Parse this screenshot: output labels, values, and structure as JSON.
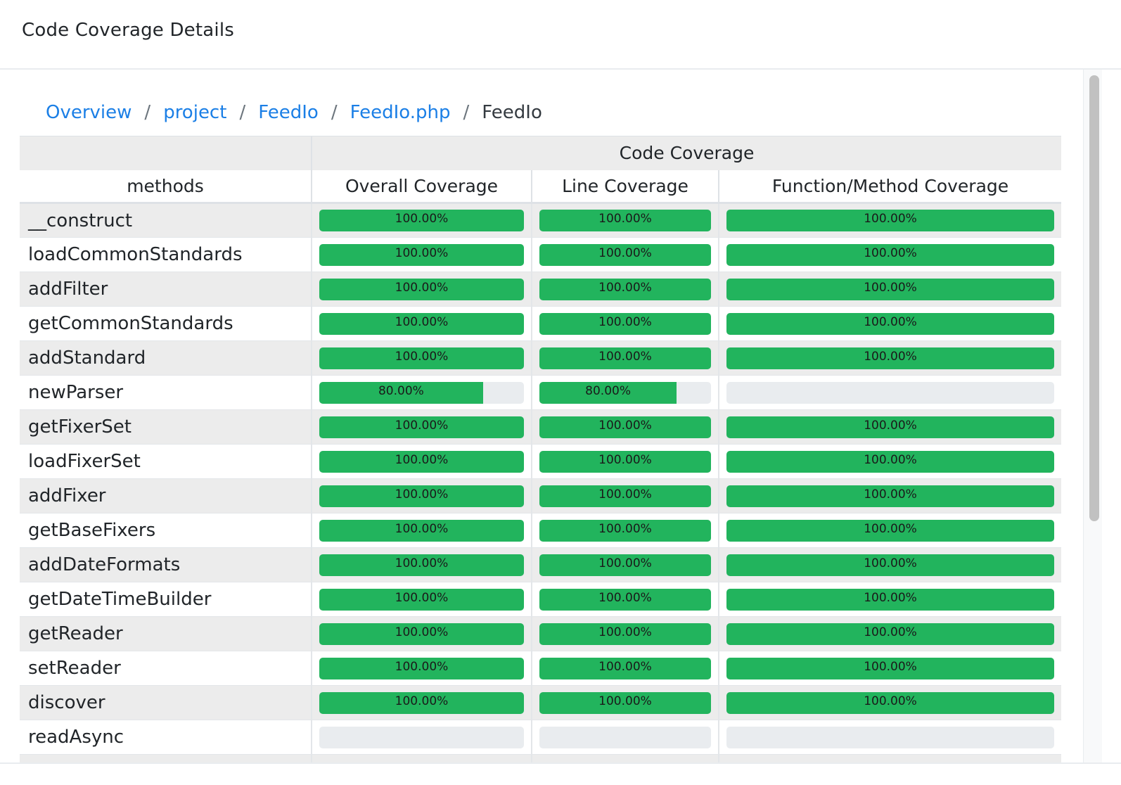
{
  "header": {
    "title": "Code Coverage Details"
  },
  "breadcrumb": {
    "items": [
      "Overview",
      "project",
      "FeedIo",
      "FeedIo.php"
    ],
    "current": "FeedIo",
    "separator": "/"
  },
  "table": {
    "group_header": "Code Coverage",
    "columns": [
      "methods",
      "Overall Coverage",
      "Line Coverage",
      "Function/Method Coverage"
    ],
    "colors": {
      "bar_fill": "#22b45d",
      "bar_track": "#e9ecef",
      "link": "#1b7fe6"
    },
    "rows": [
      {
        "method": "__construct",
        "overall": 100,
        "line": 100,
        "function": 100,
        "overall_label": "100.00%",
        "line_label": "100.00%",
        "function_label": "100.00%"
      },
      {
        "method": "loadCommonStandards",
        "overall": 100,
        "line": 100,
        "function": 100,
        "overall_label": "100.00%",
        "line_label": "100.00%",
        "function_label": "100.00%"
      },
      {
        "method": "addFilter",
        "overall": 100,
        "line": 100,
        "function": 100,
        "overall_label": "100.00%",
        "line_label": "100.00%",
        "function_label": "100.00%"
      },
      {
        "method": "getCommonStandards",
        "overall": 100,
        "line": 100,
        "function": 100,
        "overall_label": "100.00%",
        "line_label": "100.00%",
        "function_label": "100.00%"
      },
      {
        "method": "addStandard",
        "overall": 100,
        "line": 100,
        "function": 100,
        "overall_label": "100.00%",
        "line_label": "100.00%",
        "function_label": "100.00%"
      },
      {
        "method": "newParser",
        "overall": 80,
        "line": 80,
        "function": 0,
        "overall_label": "80.00%",
        "line_label": "80.00%",
        "function_label": ""
      },
      {
        "method": "getFixerSet",
        "overall": 100,
        "line": 100,
        "function": 100,
        "overall_label": "100.00%",
        "line_label": "100.00%",
        "function_label": "100.00%"
      },
      {
        "method": "loadFixerSet",
        "overall": 100,
        "line": 100,
        "function": 100,
        "overall_label": "100.00%",
        "line_label": "100.00%",
        "function_label": "100.00%"
      },
      {
        "method": "addFixer",
        "overall": 100,
        "line": 100,
        "function": 100,
        "overall_label": "100.00%",
        "line_label": "100.00%",
        "function_label": "100.00%"
      },
      {
        "method": "getBaseFixers",
        "overall": 100,
        "line": 100,
        "function": 100,
        "overall_label": "100.00%",
        "line_label": "100.00%",
        "function_label": "100.00%"
      },
      {
        "method": "addDateFormats",
        "overall": 100,
        "line": 100,
        "function": 100,
        "overall_label": "100.00%",
        "line_label": "100.00%",
        "function_label": "100.00%"
      },
      {
        "method": "getDateTimeBuilder",
        "overall": 100,
        "line": 100,
        "function": 100,
        "overall_label": "100.00%",
        "line_label": "100.00%",
        "function_label": "100.00%"
      },
      {
        "method": "getReader",
        "overall": 100,
        "line": 100,
        "function": 100,
        "overall_label": "100.00%",
        "line_label": "100.00%",
        "function_label": "100.00%"
      },
      {
        "method": "setReader",
        "overall": 100,
        "line": 100,
        "function": 100,
        "overall_label": "100.00%",
        "line_label": "100.00%",
        "function_label": "100.00%"
      },
      {
        "method": "discover",
        "overall": 100,
        "line": 100,
        "function": 100,
        "overall_label": "100.00%",
        "line_label": "100.00%",
        "function_label": "100.00%"
      },
      {
        "method": "readAsync",
        "overall": 0,
        "line": 0,
        "function": 0,
        "overall_label": "",
        "line_label": "",
        "function_label": ""
      }
    ]
  }
}
